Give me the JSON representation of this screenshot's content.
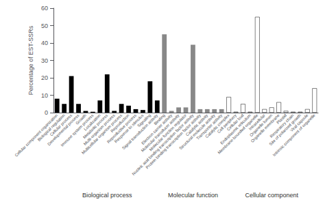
{
  "chart_data": {
    "type": "bar",
    "ylabel": "Percentage of EST-SSRs",
    "categories": [
      "Cellular component organization",
      "Biological regulation",
      "Cellular process",
      "Developmental process",
      "Growth",
      "Immune system process",
      "Localization",
      "Metabolic process",
      "Multi-organism process",
      "Multicellular organism process",
      "Reproduction",
      "Reproductive process",
      "Response to stimulus",
      "Signaling",
      "Signal transduction activity",
      "Binding",
      "Electron carrier activity",
      "Molecular transducer activity",
      "Molecular function regulator",
      "Nucleic acid binding transcription factor activity",
      "Protein binding transcription factor activity",
      "Catalytic activity",
      "Structural molecule activity",
      "Transporter activity",
      "Catalytic complex",
      "Cell periphery",
      "Cellular bud",
      "Endoplasmic reticulum",
      "Membrane-bounded organelle",
      "Intracellular",
      "Organelle lumen",
      "Organelle membrane",
      "Plastid",
      "Respiratory chain",
      "Site of polarized growth",
      "Viral capsule",
      "Intrinsic component of organelle"
    ],
    "values": [
      8,
      5,
      21,
      5,
      1,
      0.5,
      7,
      22,
      1,
      5,
      4,
      2,
      1.5,
      18,
      7,
      45,
      1,
      3,
      3,
      39,
      2,
      2,
      2,
      2,
      9,
      0.5,
      5,
      0.5,
      55,
      2,
      3,
      6,
      1,
      0.5,
      0.5,
      2,
      14
    ],
    "colors": [
      "black",
      "black",
      "black",
      "black",
      "black",
      "black",
      "black",
      "black",
      "black",
      "black",
      "black",
      "black",
      "black",
      "black",
      "black",
      "#888888",
      "#888888",
      "#888888",
      "#888888",
      "#888888",
      "#888888",
      "#888888",
      "#888888",
      "#888888",
      "white",
      "white",
      "white",
      "white",
      "white",
      "white",
      "white",
      "white",
      "white",
      "white",
      "white",
      "white",
      "white"
    ],
    "annotations": [
      "Biological process",
      "Molecular function",
      "Cellular component"
    ],
    "ylim": [
      0,
      60
    ],
    "yticks": [
      0,
      10,
      20,
      30,
      40,
      50,
      60
    ],
    "grid": false
  }
}
